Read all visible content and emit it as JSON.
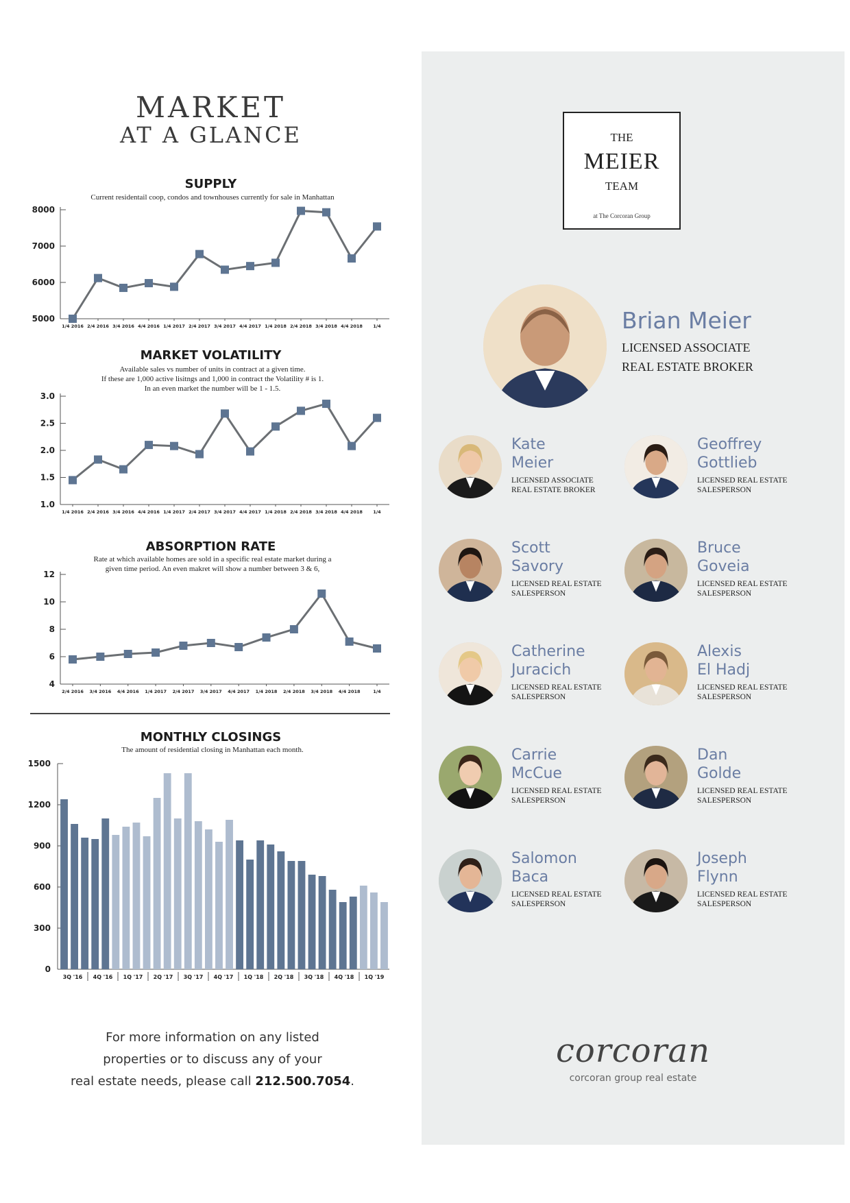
{
  "header": {
    "line1": "MARKET",
    "line2": "AT A GLANCE"
  },
  "colors": {
    "line": "#6b6f73",
    "marker": "#5e7592",
    "bar_dark": "#5e7592",
    "bar_light": "#aebccf",
    "name": "#6a7da3",
    "panel": "#eceeee"
  },
  "chart_data": [
    {
      "type": "line",
      "title": "SUPPLY",
      "subtitle": "Current residentail coop, condos and townhouses currently for sale in Manhattan",
      "categories": [
        "1/4 2016",
        "2/4 2016",
        "3/4 2016",
        "4/4 2016",
        "1/4 2017",
        "2/4 2017",
        "3/4 2017",
        "4/4 2017",
        "1/4 2018",
        "2/4 2018",
        "3/4 2018",
        "4/4 2018",
        "1/4"
      ],
      "values": [
        5000,
        6120,
        5850,
        5980,
        5880,
        6780,
        6350,
        6450,
        6540,
        7970,
        7930,
        6660,
        7540
      ],
      "ylim": [
        5000,
        8000
      ],
      "yticks": [
        "5000",
        "6000",
        "7000",
        "8000"
      ]
    },
    {
      "type": "line",
      "title": "MARKET VOLATILITY",
      "subtitle": [
        "Available sales vs number of units in contract at a given time.",
        "If these are 1,000 active lisitngs and 1,000 in contract the Volatility # is 1.",
        "In an even market the number will be 1 - 1.5."
      ],
      "categories": [
        "1/4 2016",
        "2/4 2016",
        "3/4 2016",
        "4/4 2016",
        "1/4 2017",
        "2/4 2017",
        "3/4 2017",
        "4/4 2017",
        "1/4 2018",
        "2/4 2018",
        "3/4 2018",
        "4/4 2018",
        "1/4"
      ],
      "values": [
        1.45,
        1.83,
        1.65,
        2.1,
        2.08,
        1.93,
        2.68,
        1.98,
        2.44,
        2.73,
        2.86,
        2.08,
        2.6
      ],
      "ylim": [
        1.0,
        3.0
      ],
      "yticks": [
        "1.0",
        "1.5",
        "2.0",
        "2.5",
        "3.0"
      ]
    },
    {
      "type": "line",
      "title": "ABSORPTION RATE",
      "subtitle": [
        "Rate at which available homes are sold in a specific real estate market during a",
        "given time period. An even makret will show a number between 3 & 6,"
      ],
      "categories": [
        "2/4 2016",
        "3/4 2016",
        "4/4 2016",
        "1/4 2017",
        "2/4 2017",
        "3/4 2017",
        "4/4 2017",
        "1/4 2018",
        "2/4 2018",
        "3/4 2018",
        "4/4 2018",
        "1/4"
      ],
      "values": [
        5.8,
        6.0,
        6.2,
        6.3,
        6.8,
        7.0,
        6.7,
        7.4,
        8.0,
        10.6,
        7.1,
        6.6
      ],
      "ylim": [
        4,
        12
      ],
      "yticks": [
        "4",
        "6",
        "8",
        "10",
        "12"
      ]
    },
    {
      "type": "bar",
      "title": "MONTHLY CLOSINGS",
      "subtitle": "The amount of residential closing in Manhattan each month.",
      "values": [
        1240,
        1060,
        960,
        950,
        1100,
        980,
        1040,
        1070,
        970,
        1250,
        1430,
        1100,
        1430,
        1080,
        1020,
        930,
        1090,
        940,
        800,
        940,
        910,
        860,
        790,
        790,
        690,
        680,
        580,
        490,
        530,
        610,
        560,
        490
      ],
      "shades": [
        "d",
        "d",
        "d",
        "d",
        "d",
        "l",
        "l",
        "l",
        "l",
        "l",
        "l",
        "l",
        "l",
        "l",
        "l",
        "l",
        "l",
        "d",
        "d",
        "d",
        "d",
        "d",
        "d",
        "d",
        "d",
        "d",
        "d",
        "d",
        "d",
        "l",
        "l",
        "l"
      ],
      "quarter_labels": [
        "3Q '16",
        "4Q '16",
        "1Q '17",
        "2Q '17",
        "3Q '17",
        "4Q '17",
        "1Q '18",
        "2Q '18",
        "3Q '18",
        "4Q '18",
        "1Q '19"
      ],
      "ylim": [
        0,
        1500
      ],
      "yticks": [
        "0",
        "300",
        "600",
        "900",
        "1200",
        "1500"
      ]
    }
  ],
  "footer": {
    "line1": "For more information on any listed",
    "line2": "properties or to discuss any of your",
    "line3_prefix": "real estate needs, please call ",
    "phone": "212.500.7054",
    "line3_suffix": "."
  },
  "logo": {
    "the": "THE",
    "meier": "MEIER",
    "team": "TEAM",
    "at": "at The Corcoran Group"
  },
  "lead": {
    "name": "Brian Meier",
    "title_line1": "LICENSED ASSOCIATE",
    "title_line2": "REAL ESTATE BROKER"
  },
  "agents": [
    {
      "first": "Kate",
      "last": "Meier",
      "title1": "LICENSED ASSOCIATE",
      "title2": "REAL ESTATE BROKER"
    },
    {
      "first": "Geoffrey",
      "last": "Gottlieb",
      "title1": "LICENSED REAL ESTATE",
      "title2": "SALESPERSON"
    },
    {
      "first": "Scott",
      "last": "Savory",
      "title1": "LICENSED REAL ESTATE",
      "title2": "SALESPERSON"
    },
    {
      "first": "Bruce",
      "last": "Goveia",
      "title1": "LICENSED REAL ESTATE",
      "title2": "SALESPERSON"
    },
    {
      "first": "Catherine",
      "last": "Juracich",
      "title1": "LICENSED REAL ESTATE",
      "title2": "SALESPERSON"
    },
    {
      "first": "Alexis",
      "last": "El Hadj",
      "title1": "LICENSED REAL ESTATE",
      "title2": "SALESPERSON"
    },
    {
      "first": "Carrie",
      "last": "McCue",
      "title1": "LICENSED REAL ESTATE",
      "title2": "SALESPERSON"
    },
    {
      "first": "Dan",
      "last": "Golde",
      "title1": "LICENSED REAL ESTATE",
      "title2": "SALESPERSON"
    },
    {
      "first": "Salomon",
      "last": "Baca",
      "title1": "LICENSED REAL ESTATE",
      "title2": "SALESPERSON"
    },
    {
      "first": "Joseph",
      "last": "Flynn",
      "title1": "LICENSED REAL ESTATE",
      "title2": "SALESPERSON"
    }
  ],
  "brand": {
    "name": "corcoran",
    "tagline": "corcoran group real estate"
  }
}
